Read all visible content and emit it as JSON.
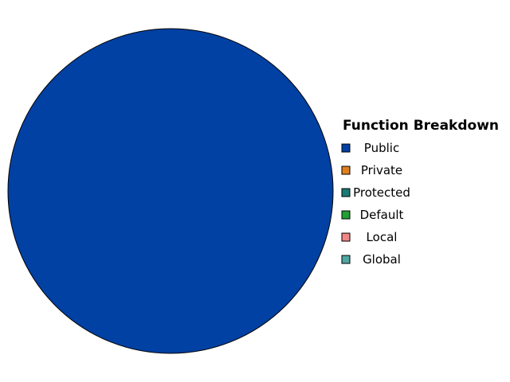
{
  "chart_data": {
    "type": "pie",
    "title": "",
    "legend": {
      "title": "Function Breakdown",
      "position": "right"
    },
    "slices": [
      {
        "label": "Public",
        "value": 1,
        "color": "#0041A3"
      },
      {
        "label": "Private",
        "value": 0,
        "color": "#E07F1F"
      },
      {
        "label": "Protected",
        "value": 0,
        "color": "#1A7A74"
      },
      {
        "label": "Default",
        "value": 0,
        "color": "#22A033"
      },
      {
        "label": "Local",
        "value": 0,
        "color": "#F08585"
      },
      {
        "label": "Global",
        "value": 0,
        "color": "#4FA7A2"
      }
    ]
  }
}
